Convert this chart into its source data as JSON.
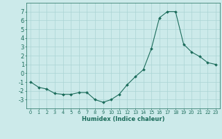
{
  "x": [
    0,
    1,
    2,
    3,
    4,
    5,
    6,
    7,
    8,
    9,
    10,
    11,
    12,
    13,
    14,
    15,
    16,
    17,
    18,
    19,
    20,
    21,
    22,
    23
  ],
  "y": [
    -1.0,
    -1.6,
    -1.8,
    -2.3,
    -2.4,
    -2.4,
    -2.2,
    -2.2,
    -3.0,
    -3.3,
    -3.0,
    -2.4,
    -1.3,
    -0.4,
    0.4,
    2.8,
    6.3,
    7.0,
    7.0,
    3.3,
    2.4,
    1.9,
    1.2,
    1.0
  ],
  "line_color": "#1a6b5a",
  "marker": "D",
  "markersize": 2.0,
  "bg_color": "#cceaea",
  "grid_color": "#aad4d4",
  "xlabel": "Humidex (Indice chaleur)",
  "ylim": [
    -4,
    8
  ],
  "xlim": [
    -0.5,
    23.5
  ],
  "yticks": [
    -3,
    -2,
    -1,
    0,
    1,
    2,
    3,
    4,
    5,
    6,
    7
  ],
  "xticks": [
    0,
    1,
    2,
    3,
    4,
    5,
    6,
    7,
    8,
    9,
    10,
    11,
    12,
    13,
    14,
    15,
    16,
    17,
    18,
    19,
    20,
    21,
    22,
    23
  ],
  "font_color": "#1a6b5a",
  "tick_color": "#1a6b5a",
  "xlabel_fontsize": 6.0,
  "ytick_fontsize": 6.0,
  "xtick_fontsize": 4.8
}
